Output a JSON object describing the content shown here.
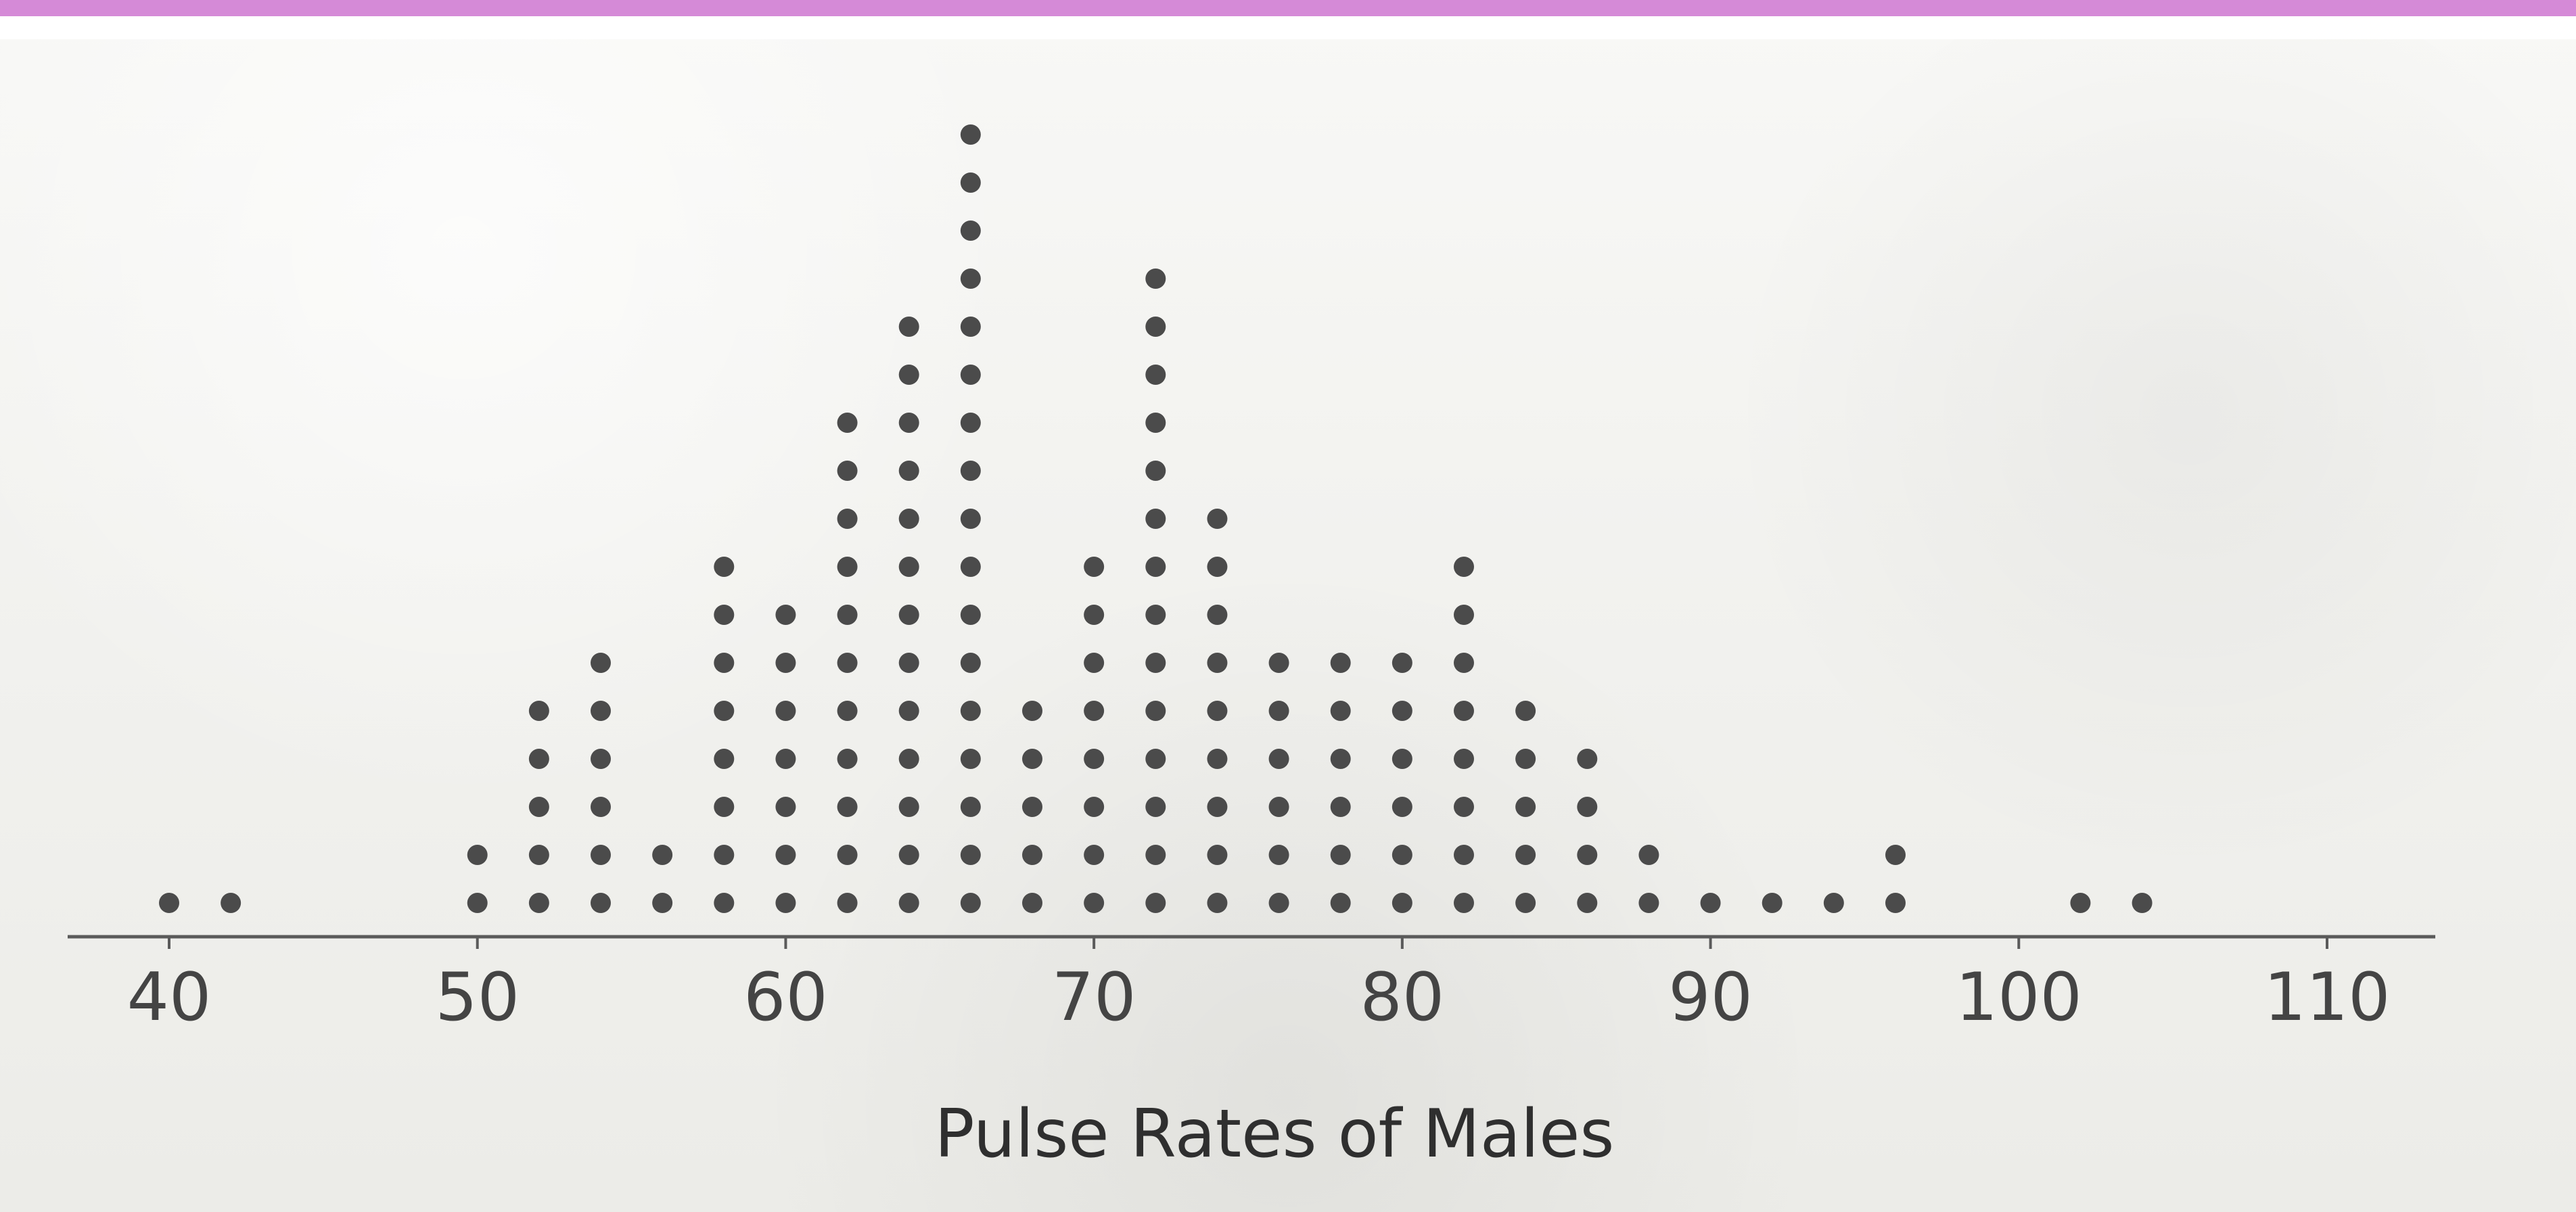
{
  "chart_data": {
    "type": "scatter",
    "xlabel": "Pulse Rates of Males",
    "xlim": [
      40,
      110
    ],
    "xticks": [
      40,
      50,
      60,
      70,
      80,
      90,
      100,
      110
    ],
    "tick_labels": [
      "40",
      "50",
      "60",
      "70",
      "80",
      "90",
      "100",
      "110"
    ],
    "grid": false,
    "legend": "none",
    "colors": {
      "marker": "#4b4b4b",
      "axis": "#5a5a5a",
      "text": "#444444",
      "accent": "#d58ad7"
    },
    "x": [
      40,
      42,
      50,
      52,
      54,
      56,
      58,
      60,
      62,
      64,
      66,
      68,
      70,
      72,
      74,
      76,
      78,
      80,
      82,
      84,
      86,
      88,
      90,
      92,
      94,
      96,
      102,
      104
    ],
    "counts": [
      1,
      1,
      2,
      5,
      6,
      2,
      8,
      7,
      11,
      13,
      17,
      5,
      8,
      14,
      9,
      6,
      6,
      6,
      8,
      5,
      4,
      2,
      1,
      1,
      1,
      2,
      1,
      1
    ]
  }
}
